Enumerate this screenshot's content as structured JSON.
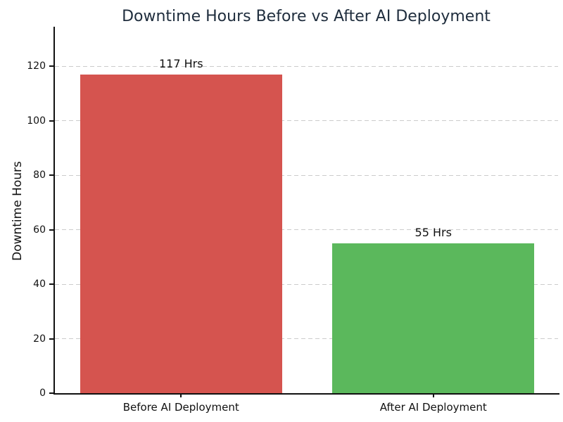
{
  "chart_data": {
    "type": "bar",
    "title": "Downtime Hours Before vs After AI Deployment",
    "categories": [
      "Before AI Deployment",
      "After AI Deployment"
    ],
    "values": [
      117,
      55
    ],
    "value_labels": [
      "117 Hrs",
      "55 Hrs"
    ],
    "bar_colors": [
      "#d5544f",
      "#5bb85c"
    ],
    "xlabel": "",
    "ylabel": "Downtime Hours",
    "ylim": [
      0,
      135
    ],
    "yticks": [
      0,
      20,
      40,
      60,
      80,
      100,
      120
    ],
    "bar_width_fraction": 0.8,
    "grid": "horizontal-dashed",
    "gridline_color": "#cccccc",
    "legend": "none",
    "title_color": "#1f2d3d",
    "text_color": "#111111",
    "axis_color": "#111111",
    "background_color": "#ffffff"
  }
}
